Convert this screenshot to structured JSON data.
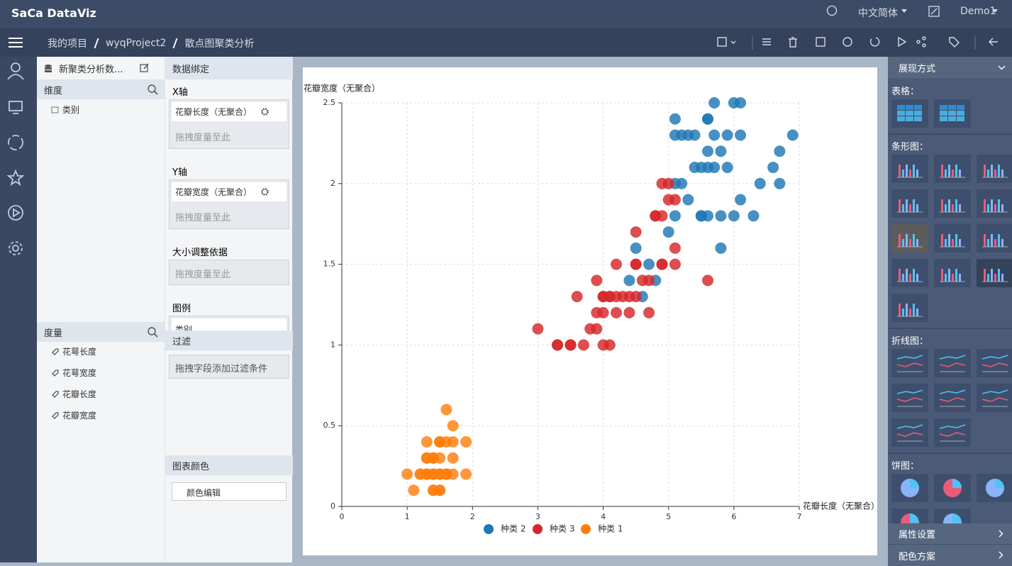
{
  "header": {
    "logo": "SaCa DataViz",
    "language": "中文简体",
    "user": "Demo1"
  },
  "breadcrumb": [
    "我的项目",
    "wyqProject2",
    "散点图聚类分析"
  ],
  "data_panel": {
    "dataset": "新聚类分析数...",
    "dimensions_title": "维度",
    "dimensions": [
      "类别"
    ],
    "measures_title": "度量",
    "measures": [
      "花萼长度",
      "花萼宽度",
      "花瓣长度",
      "花瓣宽度"
    ]
  },
  "binding_panel": {
    "title": "数据绑定",
    "x_axis": {
      "label": "X轴",
      "field": "花瓣长度（无聚合）",
      "placeholder": "拖拽度量至此"
    },
    "y_axis": {
      "label": "Y轴",
      "field": "花瓣宽度（无聚合）",
      "placeholder": "拖拽度量至此"
    },
    "size": {
      "label": "大小调整依据",
      "placeholder": "拖拽度量至此"
    },
    "legend": {
      "label": "图例",
      "field": "类别"
    },
    "filter": {
      "title": "过滤",
      "placeholder": "拖拽字段添加过滤条件"
    },
    "color": {
      "title": "图表颜色",
      "button": "颜色编辑"
    }
  },
  "display_panel": {
    "title": "展现方式",
    "sections": [
      "表格：",
      "条形图：",
      "折线图：",
      "饼图："
    ],
    "footer": [
      "属性设置",
      "配色方案"
    ]
  },
  "chart_data": {
    "type": "scatter",
    "x_label": "花瓣长度（无聚合）",
    "y_label": "花瓣宽度（无聚合）",
    "xlim": [
      0,
      7
    ],
    "xticks": [
      0,
      1,
      2,
      3,
      4,
      5,
      6,
      7
    ],
    "ylim": [
      0,
      2.5
    ],
    "yticks": [
      0,
      0.5,
      1,
      1.5,
      2,
      2.5
    ],
    "grid": true,
    "legend": "bottom",
    "series": [
      {
        "name": "种类 2",
        "color": "#1f77b4",
        "x": [
          5.7,
          6.0,
          6.1,
          5.1,
          5.6,
          5.6,
          5.1,
          5.2,
          5.3,
          5.4,
          5.7,
          5.9,
          6.1,
          6.9,
          5.6,
          5.8,
          6.7,
          5.4,
          5.5,
          5.6,
          5.7,
          5.9,
          6.6,
          5.1,
          5.2,
          6.4,
          6.7,
          5.3,
          6.1,
          5.1,
          5.5,
          5.5,
          5.6,
          5.8,
          6.0,
          6.3,
          5.0,
          4.5,
          5.8,
          4.7,
          4.4,
          4.8,
          4.6
        ],
        "values": [
          2.5,
          2.5,
          2.5,
          2.4,
          2.4,
          2.4,
          2.3,
          2.3,
          2.3,
          2.3,
          2.3,
          2.3,
          2.3,
          2.3,
          2.2,
          2.2,
          2.2,
          2.1,
          2.1,
          2.1,
          2.1,
          2.1,
          2.1,
          2.0,
          2.0,
          2.0,
          2.0,
          1.9,
          1.9,
          1.8,
          1.8,
          1.8,
          1.8,
          1.8,
          1.8,
          1.8,
          1.7,
          1.6,
          1.6,
          1.5,
          1.4,
          1.4,
          1.3
        ]
      },
      {
        "name": "种类 3",
        "color": "#d62728",
        "x": [
          4.9,
          5.0,
          5.0,
          5.1,
          4.8,
          4.8,
          4.9,
          4.5,
          5.1,
          4.2,
          4.5,
          4.5,
          4.9,
          4.9,
          5.1,
          3.9,
          4.6,
          4.7,
          5.6,
          3.6,
          4.0,
          4.0,
          4.1,
          4.1,
          4.2,
          4.3,
          4.4,
          4.5,
          3.9,
          4.0,
          4.2,
          4.4,
          4.7,
          3.0,
          3.8,
          3.9,
          3.3,
          3.3,
          3.5,
          3.5,
          3.7,
          4.0,
          4.1
        ],
        "values": [
          2.0,
          2.0,
          1.9,
          1.9,
          1.8,
          1.8,
          1.8,
          1.7,
          1.6,
          1.5,
          1.5,
          1.5,
          1.5,
          1.5,
          1.5,
          1.4,
          1.4,
          1.4,
          1.4,
          1.3,
          1.3,
          1.3,
          1.3,
          1.3,
          1.3,
          1.3,
          1.3,
          1.3,
          1.2,
          1.2,
          1.2,
          1.2,
          1.2,
          1.1,
          1.1,
          1.1,
          1.0,
          1.0,
          1.0,
          1.0,
          1.0,
          1.0,
          1.0
        ]
      },
      {
        "name": "种类 1",
        "color": "#ff7f0e",
        "x": [
          1.4,
          1.4,
          1.3,
          1.5,
          1.4,
          1.7,
          1.4,
          1.5,
          1.4,
          1.5,
          1.5,
          1.6,
          1.4,
          1.1,
          1.2,
          1.5,
          1.3,
          1.4,
          1.7,
          1.5,
          1.7,
          1.5,
          1.0,
          1.7,
          1.9,
          1.6,
          1.6,
          1.5,
          1.4,
          1.6,
          1.6,
          1.5,
          1.5,
          1.4,
          1.5,
          1.2,
          1.3,
          1.4,
          1.3,
          1.5,
          1.3,
          1.3,
          1.3,
          1.6,
          1.9,
          1.4,
          1.6,
          1.4,
          1.5,
          1.4
        ],
        "values": [
          0.2,
          0.2,
          0.2,
          0.2,
          0.2,
          0.4,
          0.3,
          0.2,
          0.2,
          0.1,
          0.2,
          0.2,
          0.1,
          0.1,
          0.2,
          0.4,
          0.4,
          0.3,
          0.3,
          0.3,
          0.2,
          0.4,
          0.2,
          0.5,
          0.2,
          0.2,
          0.4,
          0.2,
          0.2,
          0.2,
          0.2,
          0.4,
          0.1,
          0.2,
          0.2,
          0.2,
          0.2,
          0.1,
          0.2,
          0.2,
          0.3,
          0.3,
          0.2,
          0.6,
          0.4,
          0.3,
          0.2,
          0.2,
          0.2,
          0.2
        ]
      }
    ]
  }
}
